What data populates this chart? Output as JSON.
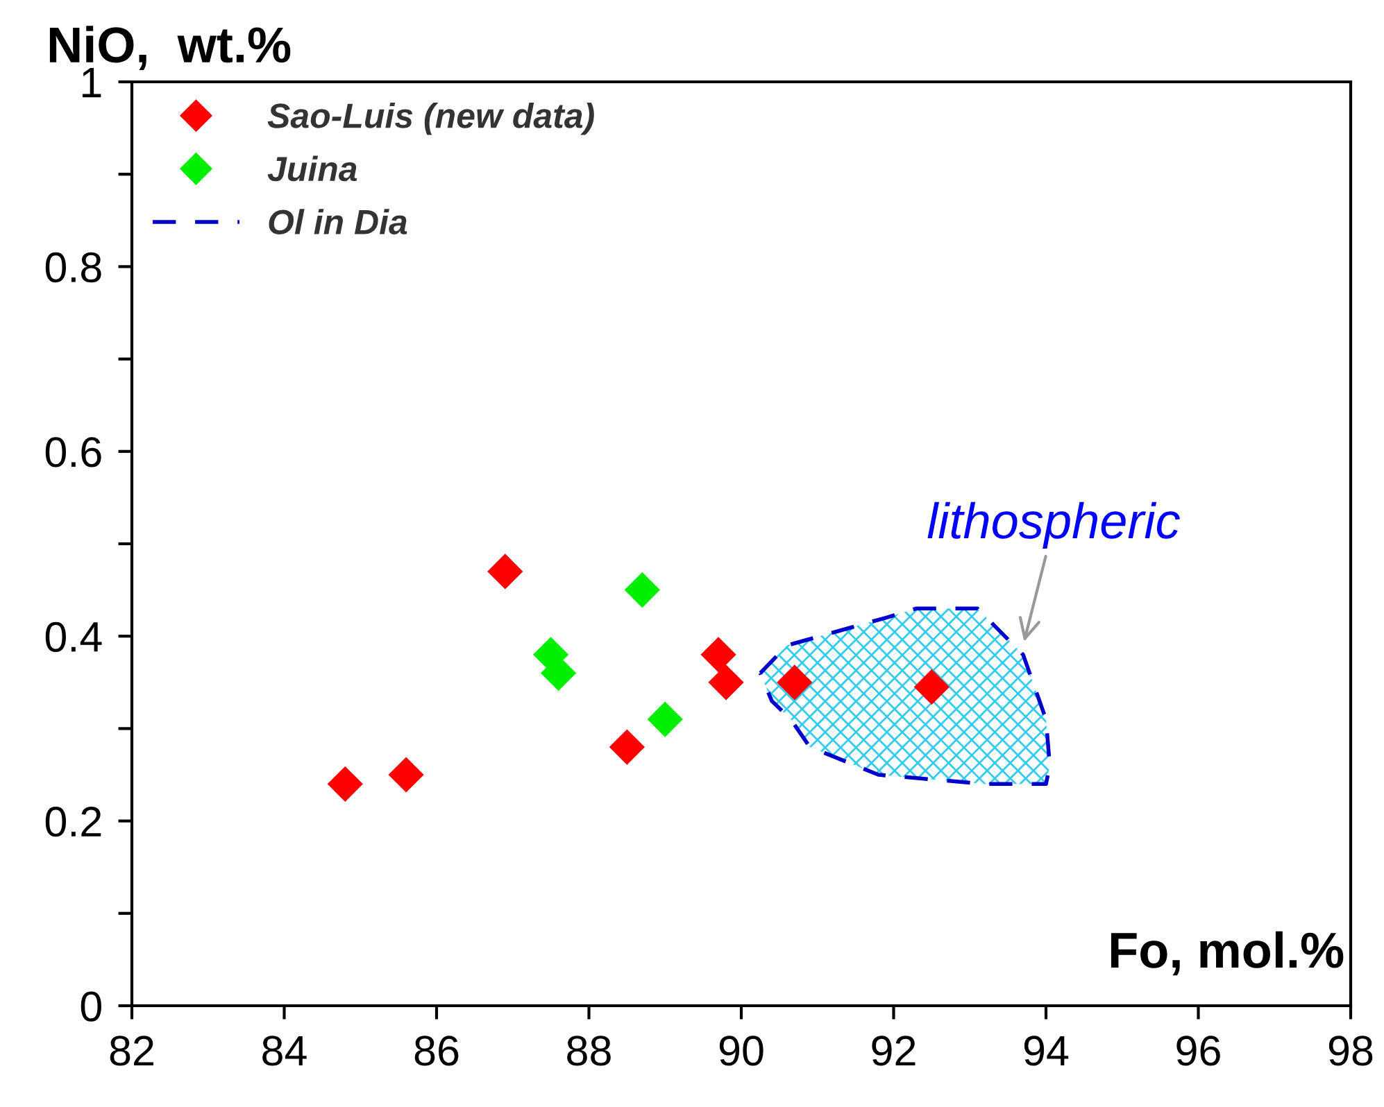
{
  "chart_data": {
    "type": "scatter",
    "xlabel": "Fo, mol.%",
    "ylabel": "NiO,  wt.%",
    "xlim": [
      82,
      98
    ],
    "xticks": [
      82,
      84,
      86,
      88,
      90,
      92,
      94,
      96,
      98
    ],
    "ylim": [
      0,
      1
    ],
    "yticks": [
      0,
      {
        "value": 0.1,
        "label": null
      },
      0.2,
      {
        "value": 0.3,
        "label": null
      },
      0.4,
      {
        "value": 0.5,
        "label": null
      },
      0.6,
      {
        "value": 0.7,
        "label": null
      },
      0.8,
      {
        "value": 0.9,
        "label": null
      },
      1
    ],
    "marker": "diamond",
    "legend": "top left",
    "grid": false,
    "series": [
      {
        "name": "Sao-Luis (new data)",
        "color": "#ff0000",
        "x": [
          84.8,
          85.6,
          86.9,
          88.5,
          89.7,
          89.8,
          90.7,
          92.5
        ],
        "values": [
          0.24,
          0.25,
          0.47,
          0.28,
          0.38,
          0.35,
          0.35,
          0.345
        ]
      },
      {
        "name": "Juina",
        "color": "#00ee00",
        "x": [
          87.5,
          87.6,
          88.7,
          89.0
        ],
        "values": [
          0.38,
          0.36,
          0.45,
          0.31
        ]
      },
      {
        "name": "Ol in Dia",
        "type": "area",
        "marker": "none",
        "color": "#0000cc",
        "line_style": "dashed",
        "x": [
          90.25,
          90.6,
          91.9,
          92.3,
          93.1,
          93.7,
          94.0,
          94.05,
          94.0,
          93.2,
          91.8,
          90.9,
          90.65,
          90.4,
          90.25
        ],
        "values": [
          0.36,
          0.39,
          0.42,
          0.43,
          0.43,
          0.38,
          0.31,
          0.26,
          0.24,
          0.24,
          0.25,
          0.28,
          0.31,
          0.33,
          0.36
        ]
      }
    ],
    "annotations": [
      {
        "text": "lithospheric",
        "x": 93.7,
        "y": 0.39
      }
    ]
  }
}
